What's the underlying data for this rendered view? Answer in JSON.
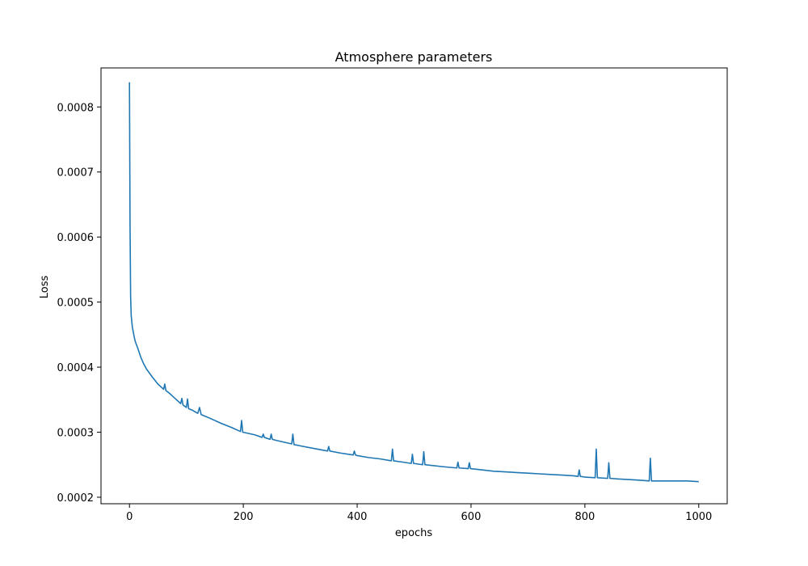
{
  "chart_data": {
    "type": "line",
    "title": "Atmosphere parameters",
    "xlabel": "epochs",
    "ylabel": "Loss",
    "xlim": [
      -50,
      1050
    ],
    "ylim": [
      0.00019,
      0.00086
    ],
    "xticks": [
      0,
      200,
      400,
      600,
      800,
      1000
    ],
    "yticks": [
      0.0002,
      0.0003,
      0.0004,
      0.0005,
      0.0006,
      0.0007,
      0.0008
    ],
    "xtick_labels": [
      "0",
      "200",
      "400",
      "600",
      "800",
      "1000"
    ],
    "ytick_labels": [
      "0.0002",
      "0.0003",
      "0.0004",
      "0.0005",
      "0.0006",
      "0.0007",
      "0.0008"
    ],
    "grid": false,
    "series": [
      {
        "color": "#1f77b4",
        "x": [
          0,
          1,
          2,
          3,
          5,
          8,
          10,
          15,
          20,
          25,
          30,
          40,
          50,
          60,
          62,
          64,
          70,
          80,
          90,
          92,
          94,
          100,
          102,
          104,
          110,
          120,
          123,
          126,
          140,
          160,
          180,
          195,
          197,
          199,
          220,
          233,
          235,
          237,
          247,
          249,
          251,
          260,
          285,
          287,
          289,
          300,
          330,
          348,
          350,
          352,
          370,
          393,
          395,
          397,
          400,
          420,
          440,
          460,
          462,
          464,
          480,
          495,
          497,
          499,
          515,
          517,
          519,
          530,
          550,
          575,
          577,
          579,
          595,
          597,
          599,
          620,
          640,
          660,
          680,
          700,
          720,
          740,
          760,
          780,
          788,
          790,
          792,
          800,
          818,
          820,
          822,
          840,
          842,
          844,
          860,
          880,
          900,
          913,
          915,
          917,
          940,
          960,
          980,
          1000
        ],
        "y": [
          0.000838,
          0.00062,
          0.00051,
          0.00048,
          0.000462,
          0.000448,
          0.00044,
          0.000428,
          0.000415,
          0.000405,
          0.000397,
          0.000385,
          0.000374,
          0.000366,
          0.000374,
          0.000364,
          0.00036,
          0.000352,
          0.000344,
          0.000352,
          0.000342,
          0.000338,
          0.000351,
          0.000336,
          0.000334,
          0.000329,
          0.000338,
          0.000327,
          0.000322,
          0.000314,
          0.000307,
          0.000301,
          0.000318,
          0.0003,
          0.000296,
          0.000292,
          0.000297,
          0.000292,
          0.000289,
          0.000297,
          0.000289,
          0.000287,
          0.000282,
          0.000297,
          0.000281,
          0.000279,
          0.000274,
          0.000271,
          0.000278,
          0.000271,
          0.000268,
          0.000265,
          0.000271,
          0.000265,
          0.000264,
          0.000261,
          0.000259,
          0.000256,
          0.000274,
          0.000256,
          0.000254,
          0.000252,
          0.000266,
          0.000252,
          0.00025,
          0.00027,
          0.00025,
          0.000249,
          0.000247,
          0.000245,
          0.000254,
          0.000245,
          0.000244,
          0.000253,
          0.000244,
          0.000242,
          0.00024,
          0.000239,
          0.000238,
          0.000237,
          0.000236,
          0.000235,
          0.000234,
          0.000233,
          0.000232,
          0.000242,
          0.000232,
          0.000231,
          0.00023,
          0.000274,
          0.00023,
          0.000229,
          0.000253,
          0.000229,
          0.000228,
          0.000227,
          0.000226,
          0.000225,
          0.00026,
          0.000225,
          0.000225,
          0.000225,
          0.000225,
          0.000224
        ]
      }
    ]
  }
}
